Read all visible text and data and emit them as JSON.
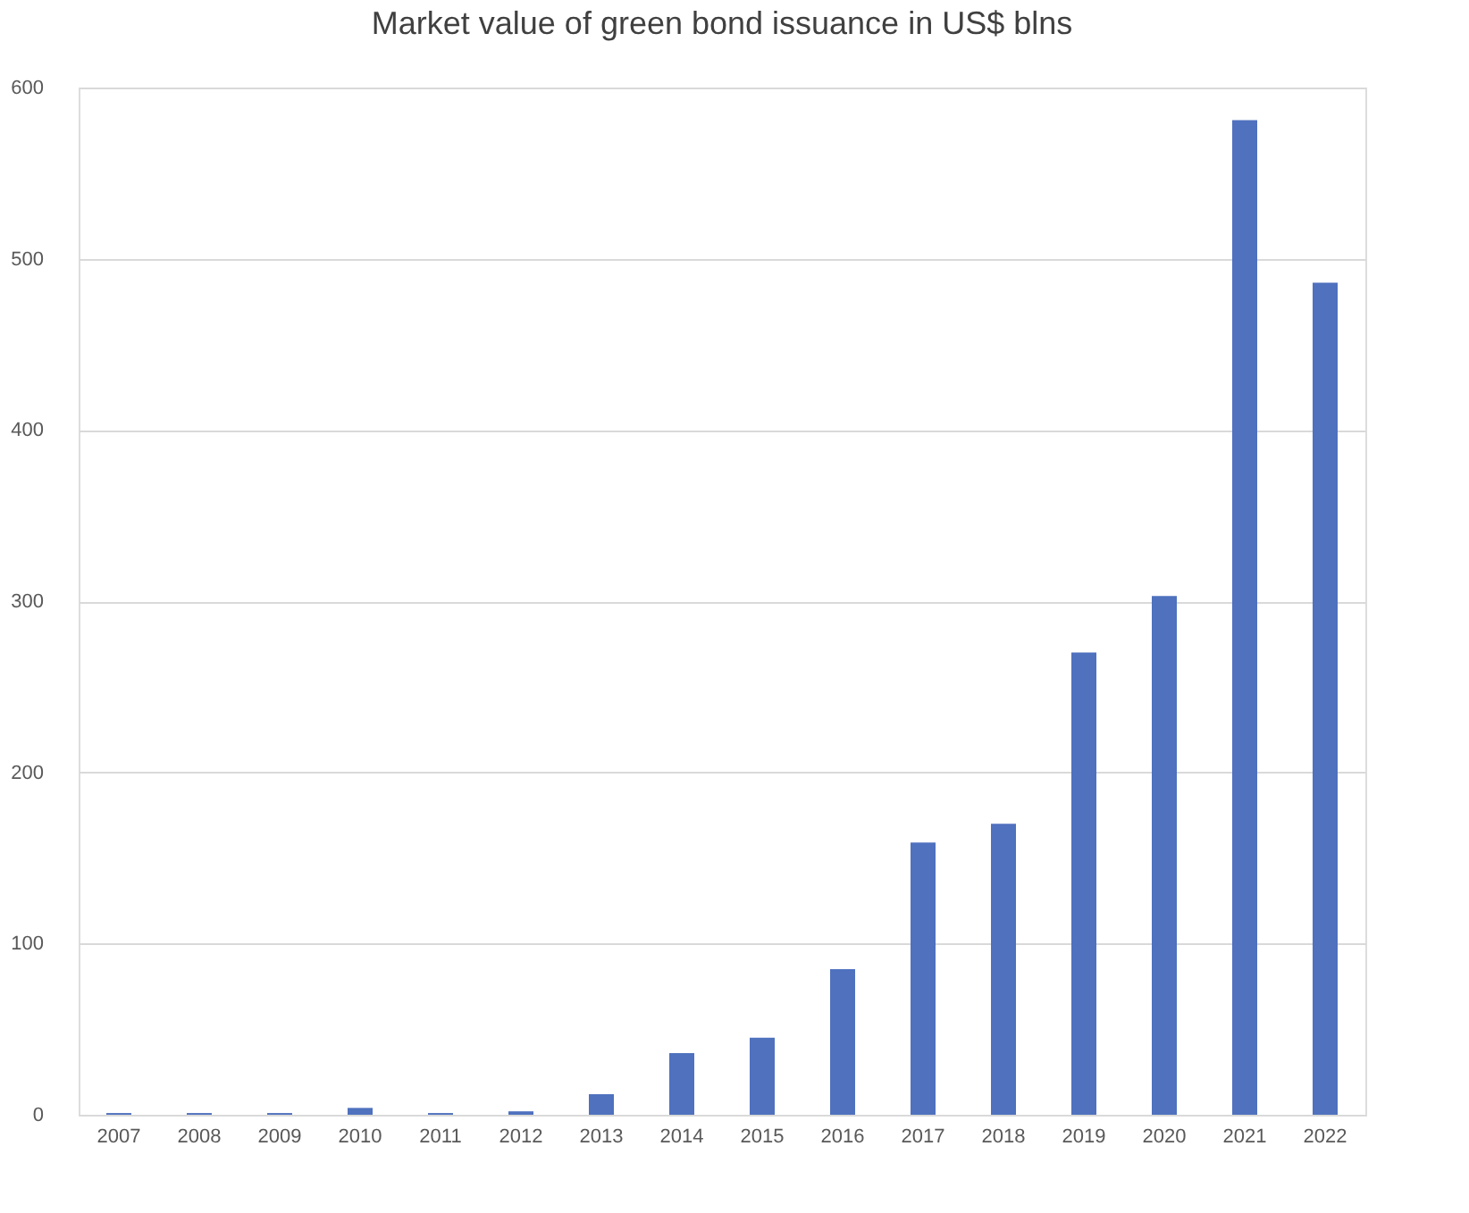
{
  "chart_data": {
    "type": "bar",
    "title": "Market value of green bond issuance in US$ blns",
    "categories": [
      "2007",
      "2008",
      "2009",
      "2010",
      "2011",
      "2012",
      "2013",
      "2014",
      "2015",
      "2016",
      "2017",
      "2018",
      "2019",
      "2020",
      "2021",
      "2022"
    ],
    "values": [
      1,
      1,
      1,
      4,
      1,
      2,
      12,
      36,
      45,
      85,
      159,
      170,
      270,
      303,
      581,
      486
    ],
    "color": "#4f71be",
    "ylim": [
      0,
      600
    ],
    "yticks": [
      0,
      100,
      200,
      300,
      400,
      500,
      600
    ],
    "grid": "y"
  }
}
